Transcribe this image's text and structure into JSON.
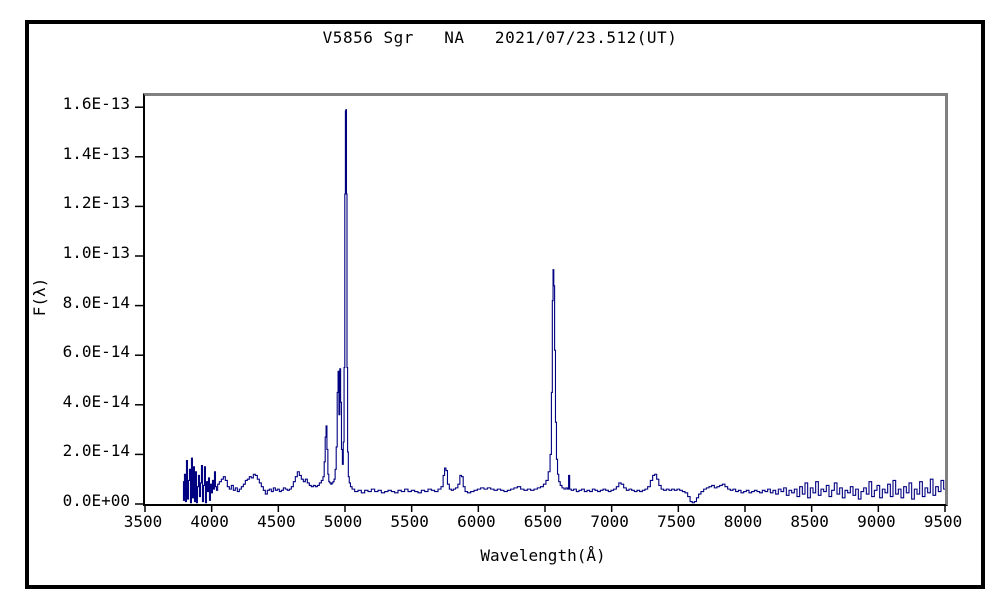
{
  "window": {
    "background": "#ffffff",
    "outer_border_color": "#000000",
    "frame_shadow_color": "#808080",
    "text_color": "#000000"
  },
  "title": "V5856 Sgr   NA   2021/07/23.512(UT)",
  "chart_data": {
    "type": "line",
    "title": "V5856 Sgr   NA   2021/07/23.512(UT)",
    "xlabel": "Wavelength(Å)",
    "ylabel": "F(λ)",
    "xlim": [
      3500,
      9500
    ],
    "ylim_labels": [
      "0.0E+00",
      "1.6E-13"
    ],
    "grid": false,
    "legend": false,
    "line_color": "#000080",
    "x_tick_values": [
      3500,
      4000,
      4500,
      5000,
      5500,
      6000,
      6500,
      7000,
      7500,
      8000,
      8500,
      9000,
      9500
    ],
    "x_tick_labels": [
      "3500",
      "4000",
      "4500",
      "5000",
      "5500",
      "6000",
      "6500",
      "7000",
      "7500",
      "8000",
      "8500",
      "9000",
      "9500"
    ],
    "y_tick_values": [
      0,
      2,
      4,
      6,
      8,
      10,
      12,
      14,
      16
    ],
    "y_tick_labels": [
      "0.0E+00",
      "2.0E-14",
      "4.0E-14",
      "6.0E-14",
      "8.0E-14",
      "1.0E-13",
      "1.2E-13",
      "1.4E-13",
      "1.6E-13"
    ],
    "flux_multiplier": 1e-14,
    "notable_peaks": [
      {
        "wavelength": 4861,
        "flux": 3.15
      },
      {
        "wavelength": 4951,
        "flux": 5.35
      },
      {
        "wavelength": 4964,
        "flux": 5.45
      },
      {
        "wavelength": 5007,
        "flux": 15.9
      },
      {
        "wavelength": 5755,
        "flux": 1.45
      },
      {
        "wavelength": 5876,
        "flux": 1.15
      },
      {
        "wavelength": 6563,
        "flux": 9.45
      },
      {
        "wavelength": 6681,
        "flux": 1.15
      },
      {
        "wavelength": 7065,
        "flux": 0.85
      },
      {
        "wavelength": 7330,
        "flux": 1.2
      }
    ],
    "points": [
      [
        3785,
        0.9
      ],
      [
        3792,
        0.15
      ],
      [
        3800,
        1.2
      ],
      [
        3807,
        0.1
      ],
      [
        3815,
        1.75
      ],
      [
        3822,
        0.2
      ],
      [
        3830,
        0.95
      ],
      [
        3837,
        1.4
      ],
      [
        3845,
        0.05
      ],
      [
        3852,
        1.85
      ],
      [
        3860,
        0.25
      ],
      [
        3867,
        1.5
      ],
      [
        3875,
        0.1
      ],
      [
        3882,
        1.3
      ],
      [
        3890,
        0.05
      ],
      [
        3897,
        0.7
      ],
      [
        3905,
        1.15
      ],
      [
        3912,
        0.3
      ],
      [
        3920,
        0.85
      ],
      [
        3927,
        1.55
      ],
      [
        3935,
        0.1
      ],
      [
        3942,
        0.75
      ],
      [
        3950,
        1.5
      ],
      [
        3957,
        0.05
      ],
      [
        3965,
        0.9
      ],
      [
        3972,
        0.5
      ],
      [
        3980,
        1.05
      ],
      [
        3987,
        0.15
      ],
      [
        3995,
        0.8
      ],
      [
        4002,
        0.45
      ],
      [
        4010,
        0.95
      ],
      [
        4017,
        0.6
      ],
      [
        4025,
        1.3
      ],
      [
        4032,
        0.7
      ],
      [
        4040,
        0.55
      ],
      [
        4050,
        0.8
      ],
      [
        4065,
        0.9
      ],
      [
        4080,
        1.0
      ],
      [
        4095,
        1.1
      ],
      [
        4110,
        0.95
      ],
      [
        4125,
        0.7
      ],
      [
        4140,
        0.6
      ],
      [
        4155,
        0.75
      ],
      [
        4170,
        0.55
      ],
      [
        4185,
        0.65
      ],
      [
        4200,
        0.5
      ],
      [
        4215,
        0.6
      ],
      [
        4230,
        0.7
      ],
      [
        4245,
        0.8
      ],
      [
        4260,
        0.95
      ],
      [
        4275,
        1.0
      ],
      [
        4290,
        1.1
      ],
      [
        4305,
        1.05
      ],
      [
        4320,
        1.2
      ],
      [
        4335,
        1.15
      ],
      [
        4350,
        1.0
      ],
      [
        4365,
        0.85
      ],
      [
        4380,
        0.7
      ],
      [
        4395,
        0.55
      ],
      [
        4410,
        0.4
      ],
      [
        4425,
        0.55
      ],
      [
        4440,
        0.6
      ],
      [
        4455,
        0.5
      ],
      [
        4470,
        0.65
      ],
      [
        4485,
        0.55
      ],
      [
        4500,
        0.6
      ],
      [
        4515,
        0.5
      ],
      [
        4530,
        0.55
      ],
      [
        4545,
        0.65
      ],
      [
        4560,
        0.6
      ],
      [
        4575,
        0.55
      ],
      [
        4590,
        0.6
      ],
      [
        4605,
        0.7
      ],
      [
        4620,
        0.9
      ],
      [
        4635,
        1.1
      ],
      [
        4650,
        1.3
      ],
      [
        4665,
        1.15
      ],
      [
        4680,
        1.0
      ],
      [
        4695,
        0.9
      ],
      [
        4710,
        1.0
      ],
      [
        4725,
        0.85
      ],
      [
        4740,
        0.75
      ],
      [
        4755,
        0.7
      ],
      [
        4770,
        0.75
      ],
      [
        4785,
        0.7
      ],
      [
        4800,
        0.75
      ],
      [
        4815,
        0.85
      ],
      [
        4830,
        0.95
      ],
      [
        4840,
        1.1
      ],
      [
        4848,
        1.7
      ],
      [
        4855,
        2.7
      ],
      [
        4861,
        3.15
      ],
      [
        4868,
        2.2
      ],
      [
        4875,
        1.2
      ],
      [
        4882,
        0.9
      ],
      [
        4890,
        0.85
      ],
      [
        4898,
        0.8
      ],
      [
        4906,
        0.85
      ],
      [
        4914,
        0.9
      ],
      [
        4922,
        1.0
      ],
      [
        4930,
        1.4
      ],
      [
        4938,
        2.3
      ],
      [
        4945,
        4.5
      ],
      [
        4951,
        5.35
      ],
      [
        4958,
        3.6
      ],
      [
        4964,
        5.45
      ],
      [
        4970,
        4.1
      ],
      [
        4977,
        2.2
      ],
      [
        4984,
        1.6
      ],
      [
        4990,
        2.5
      ],
      [
        4996,
        5.5
      ],
      [
        5001,
        12.5
      ],
      [
        5005,
        15.85
      ],
      [
        5009,
        15.9
      ],
      [
        5013,
        12.5
      ],
      [
        5017,
        5.5
      ],
      [
        5022,
        2.1
      ],
      [
        5028,
        1.1
      ],
      [
        5036,
        0.85
      ],
      [
        5046,
        0.7
      ],
      [
        5060,
        0.6
      ],
      [
        5085,
        0.5
      ],
      [
        5110,
        0.55
      ],
      [
        5135,
        0.45
      ],
      [
        5160,
        0.55
      ],
      [
        5185,
        0.5
      ],
      [
        5210,
        0.6
      ],
      [
        5235,
        0.5
      ],
      [
        5260,
        0.55
      ],
      [
        5285,
        0.45
      ],
      [
        5310,
        0.5
      ],
      [
        5335,
        0.55
      ],
      [
        5360,
        0.5
      ],
      [
        5385,
        0.45
      ],
      [
        5410,
        0.55
      ],
      [
        5435,
        0.5
      ],
      [
        5460,
        0.6
      ],
      [
        5485,
        0.5
      ],
      [
        5510,
        0.55
      ],
      [
        5535,
        0.5
      ],
      [
        5560,
        0.45
      ],
      [
        5585,
        0.55
      ],
      [
        5610,
        0.5
      ],
      [
        5635,
        0.6
      ],
      [
        5660,
        0.55
      ],
      [
        5685,
        0.5
      ],
      [
        5710,
        0.6
      ],
      [
        5730,
        0.7
      ],
      [
        5742,
        1.15
      ],
      [
        5752,
        1.45
      ],
      [
        5762,
        1.35
      ],
      [
        5775,
        0.8
      ],
      [
        5790,
        0.6
      ],
      [
        5805,
        0.55
      ],
      [
        5820,
        0.6
      ],
      [
        5838,
        0.65
      ],
      [
        5855,
        0.8
      ],
      [
        5868,
        1.15
      ],
      [
        5880,
        1.1
      ],
      [
        5893,
        0.7
      ],
      [
        5908,
        0.5
      ],
      [
        5930,
        0.45
      ],
      [
        5955,
        0.5
      ],
      [
        5980,
        0.55
      ],
      [
        6005,
        0.6
      ],
      [
        6030,
        0.65
      ],
      [
        6055,
        0.6
      ],
      [
        6080,
        0.65
      ],
      [
        6105,
        0.6
      ],
      [
        6130,
        0.55
      ],
      [
        6155,
        0.6
      ],
      [
        6180,
        0.55
      ],
      [
        6205,
        0.5
      ],
      [
        6230,
        0.55
      ],
      [
        6255,
        0.6
      ],
      [
        6280,
        0.65
      ],
      [
        6305,
        0.7
      ],
      [
        6330,
        0.6
      ],
      [
        6355,
        0.55
      ],
      [
        6380,
        0.6
      ],
      [
        6405,
        0.55
      ],
      [
        6430,
        0.6
      ],
      [
        6455,
        0.65
      ],
      [
        6478,
        0.7
      ],
      [
        6498,
        0.8
      ],
      [
        6516,
        0.95
      ],
      [
        6532,
        1.3
      ],
      [
        6544,
        2.0
      ],
      [
        6552,
        4.5
      ],
      [
        6558,
        8.2
      ],
      [
        6563,
        9.45
      ],
      [
        6569,
        8.8
      ],
      [
        6575,
        6.2
      ],
      [
        6582,
        3.3
      ],
      [
        6590,
        1.8
      ],
      [
        6598,
        1.2
      ],
      [
        6608,
        0.9
      ],
      [
        6620,
        0.75
      ],
      [
        6635,
        0.65
      ],
      [
        6650,
        0.6
      ],
      [
        6663,
        0.65
      ],
      [
        6673,
        0.6
      ],
      [
        6681,
        1.15
      ],
      [
        6689,
        0.6
      ],
      [
        6705,
        0.55
      ],
      [
        6725,
        0.6
      ],
      [
        6745,
        0.5
      ],
      [
        6765,
        0.55
      ],
      [
        6785,
        0.6
      ],
      [
        6805,
        0.5
      ],
      [
        6825,
        0.55
      ],
      [
        6845,
        0.5
      ],
      [
        6865,
        0.6
      ],
      [
        6885,
        0.55
      ],
      [
        6905,
        0.5
      ],
      [
        6925,
        0.55
      ],
      [
        6945,
        0.6
      ],
      [
        6965,
        0.55
      ],
      [
        6985,
        0.5
      ],
      [
        7005,
        0.55
      ],
      [
        7025,
        0.6
      ],
      [
        7045,
        0.7
      ],
      [
        7062,
        0.85
      ],
      [
        7080,
        0.8
      ],
      [
        7100,
        0.65
      ],
      [
        7120,
        0.55
      ],
      [
        7140,
        0.6
      ],
      [
        7160,
        0.55
      ],
      [
        7180,
        0.5
      ],
      [
        7200,
        0.55
      ],
      [
        7220,
        0.5
      ],
      [
        7240,
        0.55
      ],
      [
        7260,
        0.6
      ],
      [
        7280,
        0.7
      ],
      [
        7300,
        0.95
      ],
      [
        7315,
        1.15
      ],
      [
        7330,
        1.2
      ],
      [
        7345,
        1.0
      ],
      [
        7362,
        0.75
      ],
      [
        7380,
        0.6
      ],
      [
        7400,
        0.55
      ],
      [
        7420,
        0.6
      ],
      [
        7440,
        0.55
      ],
      [
        7460,
        0.6
      ],
      [
        7480,
        0.55
      ],
      [
        7500,
        0.6
      ],
      [
        7520,
        0.55
      ],
      [
        7540,
        0.5
      ],
      [
        7560,
        0.45
      ],
      [
        7580,
        0.3
      ],
      [
        7596,
        0.1
      ],
      [
        7612,
        0.05
      ],
      [
        7628,
        0.1
      ],
      [
        7644,
        0.25
      ],
      [
        7660,
        0.4
      ],
      [
        7680,
        0.5
      ],
      [
        7700,
        0.6
      ],
      [
        7720,
        0.65
      ],
      [
        7740,
        0.7
      ],
      [
        7760,
        0.75
      ],
      [
        7780,
        0.65
      ],
      [
        7800,
        0.7
      ],
      [
        7820,
        0.75
      ],
      [
        7840,
        0.8
      ],
      [
        7860,
        0.7
      ],
      [
        7880,
        0.6
      ],
      [
        7900,
        0.55
      ],
      [
        7920,
        0.6
      ],
      [
        7940,
        0.5
      ],
      [
        7960,
        0.55
      ],
      [
        7980,
        0.45
      ],
      [
        8000,
        0.5
      ],
      [
        8020,
        0.55
      ],
      [
        8040,
        0.45
      ],
      [
        8060,
        0.5
      ],
      [
        8080,
        0.55
      ],
      [
        8100,
        0.5
      ],
      [
        8120,
        0.45
      ],
      [
        8140,
        0.55
      ],
      [
        8160,
        0.5
      ],
      [
        8180,
        0.6
      ],
      [
        8200,
        0.45
      ],
      [
        8220,
        0.55
      ],
      [
        8240,
        0.4
      ],
      [
        8260,
        0.6
      ],
      [
        8280,
        0.5
      ],
      [
        8300,
        0.65
      ],
      [
        8320,
        0.35
      ],
      [
        8340,
        0.55
      ],
      [
        8360,
        0.45
      ],
      [
        8380,
        0.6
      ],
      [
        8400,
        0.3
      ],
      [
        8420,
        0.7
      ],
      [
        8440,
        0.4
      ],
      [
        8460,
        0.85
      ],
      [
        8480,
        0.25
      ],
      [
        8500,
        0.65
      ],
      [
        8520,
        0.45
      ],
      [
        8540,
        0.9
      ],
      [
        8560,
        0.35
      ],
      [
        8580,
        0.6
      ],
      [
        8600,
        0.5
      ],
      [
        8620,
        0.75
      ],
      [
        8640,
        0.3
      ],
      [
        8660,
        0.55
      ],
      [
        8680,
        0.85
      ],
      [
        8700,
        0.4
      ],
      [
        8720,
        0.65
      ],
      [
        8740,
        0.25
      ],
      [
        8760,
        0.55
      ],
      [
        8780,
        0.45
      ],
      [
        8800,
        0.7
      ],
      [
        8820,
        0.35
      ],
      [
        8840,
        0.6
      ],
      [
        8860,
        0.2
      ],
      [
        8880,
        0.5
      ],
      [
        8900,
        0.65
      ],
      [
        8920,
        0.4
      ],
      [
        8940,
        0.9
      ],
      [
        8960,
        0.3
      ],
      [
        8980,
        0.55
      ],
      [
        9000,
        0.75
      ],
      [
        9020,
        0.25
      ],
      [
        9040,
        0.6
      ],
      [
        9060,
        0.45
      ],
      [
        9080,
        0.8
      ],
      [
        9100,
        0.3
      ],
      [
        9120,
        0.95
      ],
      [
        9140,
        0.4
      ],
      [
        9160,
        0.6
      ],
      [
        9180,
        0.25
      ],
      [
        9200,
        0.7
      ],
      [
        9220,
        0.45
      ],
      [
        9240,
        0.85
      ],
      [
        9260,
        0.2
      ],
      [
        9280,
        0.6
      ],
      [
        9300,
        0.4
      ],
      [
        9320,
        0.9
      ],
      [
        9340,
        0.3
      ],
      [
        9360,
        0.65
      ],
      [
        9380,
        0.45
      ],
      [
        9400,
        1.0
      ],
      [
        9420,
        0.35
      ],
      [
        9440,
        0.7
      ],
      [
        9460,
        0.5
      ],
      [
        9480,
        0.95
      ],
      [
        9500,
        0.6
      ]
    ]
  }
}
